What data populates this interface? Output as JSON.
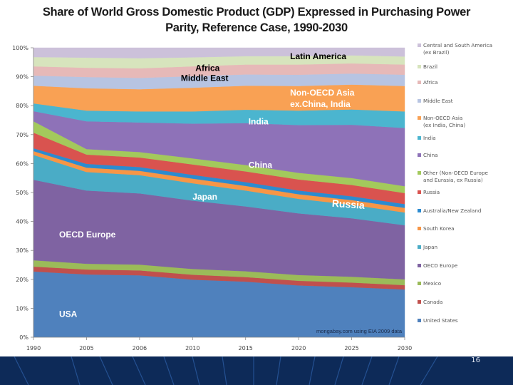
{
  "slide": {
    "page_number": "16"
  },
  "chart_data": {
    "type": "area",
    "stacked": true,
    "percent": true,
    "title": "Share of World Gross Domestic Product (GDP) Expressed in Purchasing Power Parity, Reference Case, 1990-2030",
    "title_lines": [
      "Share of World Gross Domestic Product (GDP) Expressed in Purchasing Power",
      "Parity, Reference Case, 1990-2030"
    ],
    "xlabel": "",
    "ylabel": "",
    "ylim": [
      0,
      100
    ],
    "grid": false,
    "legend_position": "right",
    "categories": [
      "1990",
      "2005",
      "2006",
      "2010",
      "2015",
      "2020",
      "2025",
      "2030"
    ],
    "y_ticks": [
      "0%",
      "10%",
      "20%",
      "30%",
      "40%",
      "50%",
      "60%",
      "70%",
      "80%",
      "90%",
      "100%"
    ],
    "series": [
      {
        "name": "United States",
        "color": "#4f81bd",
        "values": [
          22.7,
          21.7,
          21.4,
          19.9,
          19.2,
          17.9,
          17.3,
          16.5
        ]
      },
      {
        "name": "Canada",
        "color": "#c0504d",
        "values": [
          1.7,
          1.7,
          1.7,
          1.7,
          1.6,
          1.6,
          1.6,
          1.5
        ]
      },
      {
        "name": "Mexico",
        "color": "#9bbb59",
        "values": [
          2.2,
          2.0,
          2.0,
          2.0,
          2.0,
          2.0,
          2.0,
          2.0
        ]
      },
      {
        "name": "OECD Europe",
        "color": "#7f63a2",
        "values": [
          27.8,
          25.3,
          24.6,
          23.6,
          22.4,
          21.3,
          20.2,
          18.7
        ]
      },
      {
        "name": "Japan",
        "color": "#4aacc6",
        "values": [
          8.6,
          6.4,
          6.3,
          6.0,
          5.5,
          5.0,
          4.7,
          4.4
        ]
      },
      {
        "name": "South Korea",
        "color": "#f79646",
        "values": [
          1.3,
          1.5,
          1.5,
          1.6,
          1.6,
          1.6,
          1.6,
          1.6
        ]
      },
      {
        "name": "Australia/New Zealand",
        "color": "#2c8bd0",
        "values": [
          1.0,
          1.3,
          1.3,
          1.3,
          1.3,
          1.3,
          1.3,
          1.3
        ]
      },
      {
        "name": "Russia",
        "color": "#d9534f",
        "values": [
          5.4,
          3.2,
          3.3,
          3.6,
          3.7,
          3.8,
          3.9,
          3.8
        ]
      },
      {
        "name": "Other (Non-OECD Europe and Eurasia, ex Russia)",
        "color": "#a3c95c",
        "values": [
          3.9,
          1.9,
          1.9,
          2.1,
          2.2,
          2.3,
          2.4,
          2.4
        ]
      },
      {
        "name": "China",
        "color": "#8e72b8",
        "values": [
          3.5,
          9.6,
          10.2,
          12.0,
          14.5,
          16.5,
          18.4,
          20.1
        ]
      },
      {
        "name": "India",
        "color": "#4bb5cf",
        "values": [
          2.7,
          3.7,
          3.8,
          4.2,
          4.6,
          5.0,
          5.3,
          5.7
        ]
      },
      {
        "name": "Non-OECD Asia (ex India, China)",
        "color": "#f9a154",
        "values": [
          6.1,
          7.7,
          7.7,
          8.2,
          8.3,
          8.5,
          8.6,
          8.8
        ]
      },
      {
        "name": "Middle East",
        "color": "#b7c4e2",
        "values": [
          3.5,
          3.9,
          3.9,
          4.0,
          3.9,
          3.9,
          3.8,
          3.9
        ]
      },
      {
        "name": "Africa",
        "color": "#e6b9b8",
        "values": [
          3.2,
          3.2,
          3.3,
          3.4,
          3.4,
          3.5,
          3.5,
          3.5
        ]
      },
      {
        "name": "Brazil",
        "color": "#d7e4bd",
        "values": [
          3.2,
          3.5,
          3.5,
          3.1,
          2.9,
          2.9,
          2.8,
          2.8
        ]
      },
      {
        "name": "Central and South America (ex Brazil)",
        "color": "#ccc1da",
        "values": [
          3.2,
          3.4,
          3.6,
          3.3,
          2.9,
          2.9,
          2.6,
          3.0
        ]
      }
    ],
    "legend": [
      {
        "label_lines": [
          "Central and South America",
          "(ex Brazil)"
        ],
        "color": "#ccc1da"
      },
      {
        "label_lines": [
          "Brazil"
        ],
        "color": "#d7e4bd"
      },
      {
        "label_lines": [
          "Africa"
        ],
        "color": "#e6b9b8"
      },
      {
        "label_lines": [
          "Middle East"
        ],
        "color": "#b7c4e2"
      },
      {
        "label_lines": [
          "Non-OECD Asia",
          "(ex India, China)"
        ],
        "color": "#f9a154"
      },
      {
        "label_lines": [
          "India"
        ],
        "color": "#4bb5cf"
      },
      {
        "label_lines": [
          "China"
        ],
        "color": "#8e72b8"
      },
      {
        "label_lines": [
          "Other (Non-OECD Europe",
          "and Eurasia, ex Russia)"
        ],
        "color": "#a3c95c"
      },
      {
        "label_lines": [
          "Russia"
        ],
        "color": "#d9534f"
      },
      {
        "label_lines": [
          "Australia/New Zealand"
        ],
        "color": "#2c8bd0"
      },
      {
        "label_lines": [
          "South Korea"
        ],
        "color": "#f79646"
      },
      {
        "label_lines": [
          "Japan"
        ],
        "color": "#4aacc6"
      },
      {
        "label_lines": [
          "OECD Europe"
        ],
        "color": "#7f63a2"
      },
      {
        "label_lines": [
          "Mexico"
        ],
        "color": "#9bbb59"
      },
      {
        "label_lines": [
          "Canada"
        ],
        "color": "#c0504d"
      },
      {
        "label_lines": [
          "United States"
        ],
        "color": "#4f81bd"
      }
    ],
    "annotations": [
      {
        "text": "Latin America",
        "color": "#000000",
        "at_category": "2020",
        "at_value": 96.0
      },
      {
        "text": "Africa",
        "color": "#000000",
        "at_category": "2010",
        "at_value": 92.0
      },
      {
        "text": "Middle East",
        "color": "#000000",
        "at_category": "2006",
        "at_value": 88.5
      },
      {
        "text": "Non-OECD Asia",
        "color": "#ffffff",
        "at_category": "2020",
        "at_value": 83.5
      },
      {
        "text": "ex.China, India",
        "color": "#ffffff",
        "at_category": "2020",
        "at_value": 79.5
      },
      {
        "text": "India",
        "color": "#ffffff",
        "at_category": "2015",
        "at_value": 73.5
      },
      {
        "text": "China",
        "color": "#ffffff",
        "at_category": "2015",
        "at_value": 58.5
      },
      {
        "text": "Japan",
        "color": "#ffffff",
        "at_category": "2010",
        "at_value": 47.5
      },
      {
        "text": "Russia",
        "color": "#ffffff",
        "at_category": "2025",
        "at_value": 45.0
      },
      {
        "text": "OECD Europe",
        "color": "#ffffff",
        "at_category": "1990",
        "at_value": 34.5
      },
      {
        "text": "USA",
        "color": "#ffffff",
        "at_category": "1990",
        "at_value": 7.0
      }
    ],
    "source_note": "mongabay.com using EIA 2009 data"
  }
}
